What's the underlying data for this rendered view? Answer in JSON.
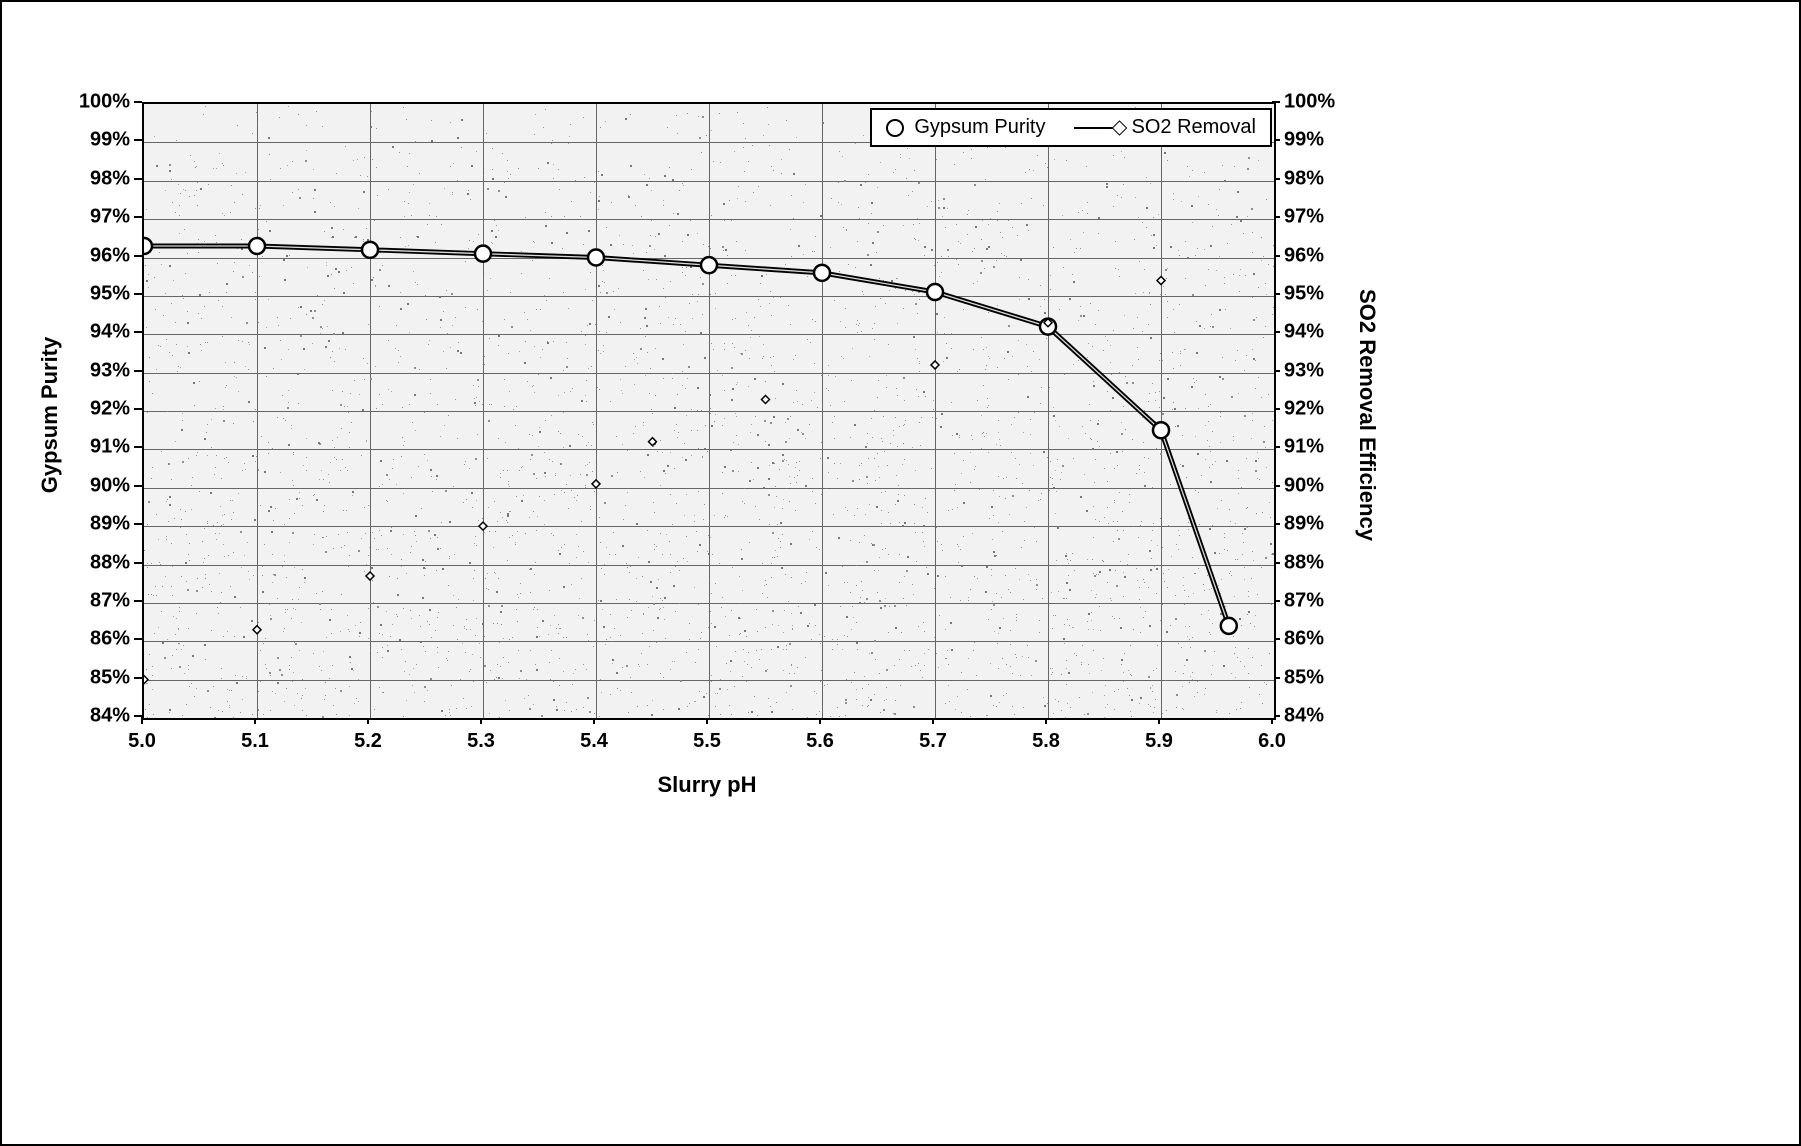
{
  "chart": {
    "type": "dual-axis-line-scatter",
    "background_color": "#f2f2f2",
    "grid_color": "#666666",
    "plot_border_color": "#000000",
    "noise_speckle_color": "#6f6f6f",
    "x_axis": {
      "title": "Slurry pH",
      "title_fontsize": 22,
      "min": 5.0,
      "max": 6.0,
      "tick_step": 0.1,
      "tick_labels": [
        "5.0",
        "5.1",
        "5.2",
        "5.3",
        "5.4",
        "5.5",
        "5.6",
        "5.7",
        "5.8",
        "5.9",
        "6.0"
      ],
      "tick_fontsize": 20
    },
    "y_left": {
      "title": "Gypsum Purity",
      "title_fontsize": 22,
      "min": 84,
      "max": 100,
      "tick_step": 1,
      "tick_labels": [
        "84%",
        "85%",
        "86%",
        "87%",
        "88%",
        "89%",
        "90%",
        "91%",
        "92%",
        "93%",
        "94%",
        "95%",
        "96%",
        "97%",
        "98%",
        "99%",
        "100%"
      ],
      "tick_fontsize": 20
    },
    "y_right": {
      "title": "SO2 Removal Efficiency",
      "title_fontsize": 22,
      "min": 84,
      "max": 100,
      "tick_step": 1,
      "tick_labels": [
        "84%",
        "85%",
        "86%",
        "87%",
        "88%",
        "89%",
        "90%",
        "91%",
        "92%",
        "93%",
        "94%",
        "95%",
        "96%",
        "97%",
        "98%",
        "99%",
        "100%"
      ],
      "tick_fontsize": 20
    },
    "series": {
      "gypsum_purity": {
        "label": "Gypsum Purity",
        "type": "line_with_markers",
        "line_color": "#000000",
        "line_width": 3,
        "double_stroke": true,
        "marker_shape": "circle",
        "marker_size": 16,
        "marker_stroke": "#000000",
        "marker_stroke_width": 2.5,
        "marker_fill": "#ffffff",
        "x": [
          5.0,
          5.1,
          5.2,
          5.3,
          5.4,
          5.5,
          5.6,
          5.7,
          5.8,
          5.9,
          5.96
        ],
        "y": [
          96.3,
          96.3,
          96.2,
          96.1,
          96.0,
          95.8,
          95.6,
          95.1,
          94.2,
          91.5,
          86.4
        ]
      },
      "so2_removal": {
        "label": "SO2 Removal",
        "type": "line_with_markers",
        "line_color": "#000000",
        "line_width": 1.5,
        "marker_shape": "diamond",
        "marker_size": 8,
        "marker_stroke": "#000000",
        "marker_stroke_width": 1.5,
        "marker_fill": "#ffffff",
        "x": [
          5.0,
          5.1,
          5.2,
          5.3,
          5.4,
          5.45,
          5.55,
          5.7,
          5.8,
          5.9
        ],
        "y": [
          85.0,
          86.3,
          87.7,
          89.0,
          90.1,
          91.2,
          92.3,
          93.2,
          94.3,
          95.4
        ]
      }
    },
    "legend": {
      "position": "top-right",
      "background": "#ffffff",
      "border_color": "#000000",
      "fontsize": 20,
      "items": [
        {
          "series": "gypsum_purity",
          "label": "Gypsum Purity"
        },
        {
          "series": "so2_removal",
          "label": "SO2 Removal"
        }
      ]
    }
  }
}
